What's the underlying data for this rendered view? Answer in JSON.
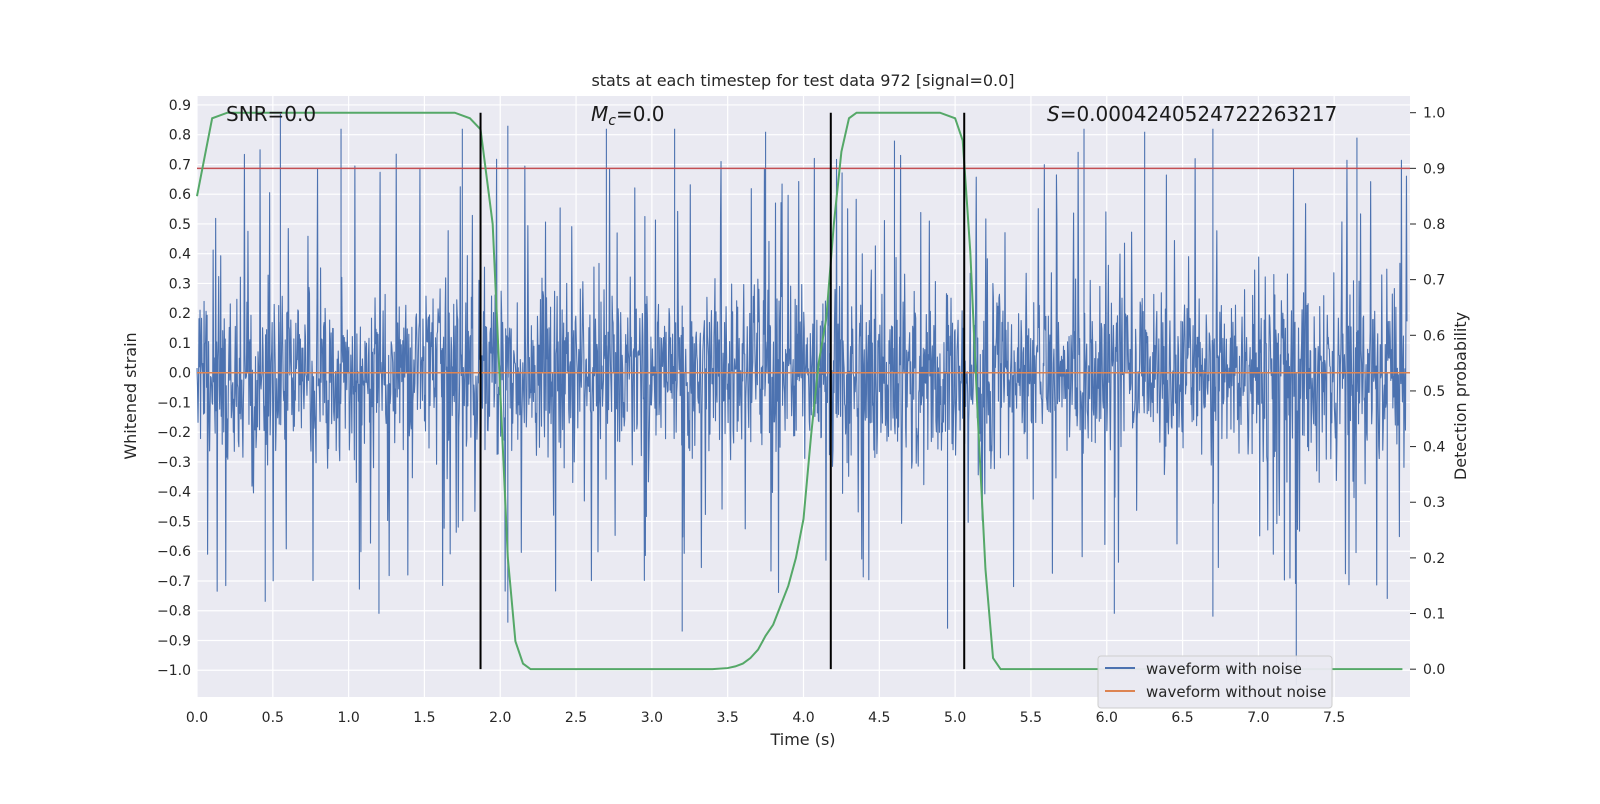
{
  "chart_data": {
    "type": "line",
    "title": "stats at each timestep for test data 972 [signal=0.0]",
    "xlabel": "Time (s)",
    "ylabel": "Whitened strain",
    "y2label": "Detection probability",
    "xlim": [
      0.0,
      8.0
    ],
    "ylim": [
      -1.09,
      0.93
    ],
    "y2lim": [
      -0.05,
      1.03
    ],
    "xticks": [
      0.0,
      0.5,
      1.0,
      1.5,
      2.0,
      2.5,
      3.0,
      3.5,
      4.0,
      4.5,
      5.0,
      5.5,
      6.0,
      6.5,
      7.0,
      7.5
    ],
    "xtick_labels": [
      "0.0",
      "0.5",
      "1.0",
      "1.5",
      "2.0",
      "2.5",
      "3.0",
      "3.5",
      "4.0",
      "4.5",
      "5.0",
      "5.5",
      "6.0",
      "6.5",
      "7.0",
      "7.5"
    ],
    "yticks": [
      0.9,
      0.8,
      0.7,
      0.6,
      0.5,
      0.4,
      0.3,
      0.2,
      0.1,
      0.0,
      -0.1,
      -0.2,
      -0.3,
      -0.4,
      -0.5,
      -0.6,
      -0.7,
      -0.8,
      -0.9,
      -1.0
    ],
    "ytick_labels": [
      "0.9",
      "0.8",
      "0.7",
      "0.6",
      "0.5",
      "0.4",
      "0.3",
      "0.2",
      "0.1",
      "0.0",
      "−0.1",
      "−0.2",
      "−0.3",
      "−0.4",
      "−0.5",
      "−0.6",
      "−0.7",
      "−0.8",
      "−0.9",
      "−1.0"
    ],
    "y2ticks": [
      1.0,
      0.9,
      0.8,
      0.7,
      0.6,
      0.5,
      0.4,
      0.3,
      0.2,
      0.1,
      0.0
    ],
    "y2tick_labels": [
      "1.0",
      "0.9",
      "0.8",
      "0.7",
      "0.6",
      "0.5",
      "0.4",
      "0.3",
      "0.2",
      "0.1",
      "0.0"
    ],
    "grid": true,
    "legend_position": "bottom-right",
    "series": [
      {
        "name": "waveform with noise",
        "axis": "left",
        "color": "#4c72b0",
        "style": "dense-noise",
        "approx_range": [
          -1.05,
          0.87
        ],
        "peaks_top": [
          [
            0.55,
            0.87
          ],
          [
            0.95,
            0.82
          ],
          [
            1.75,
            0.82
          ],
          [
            2.05,
            0.83
          ],
          [
            2.7,
            0.82
          ],
          [
            3.15,
            0.82
          ],
          [
            3.75,
            0.81
          ],
          [
            4.6,
            0.78
          ],
          [
            5.85,
            0.82
          ],
          [
            6.25,
            0.81
          ],
          [
            6.7,
            0.82
          ],
          [
            7.65,
            0.79
          ]
        ],
        "peaks_bottom": [
          [
            0.45,
            -0.77
          ],
          [
            1.2,
            -0.81
          ],
          [
            2.05,
            -0.84
          ],
          [
            3.2,
            -0.87
          ],
          [
            4.95,
            -0.86
          ],
          [
            6.05,
            -0.81
          ],
          [
            6.7,
            -0.82
          ],
          [
            7.25,
            -1.05
          ],
          [
            7.85,
            -0.76
          ]
        ]
      },
      {
        "name": "waveform without noise",
        "axis": "left",
        "color": "#dd8452",
        "x": [
          0.0,
          8.0
        ],
        "y": [
          0.0,
          0.0
        ]
      },
      {
        "name": "",
        "axis": "right",
        "color": "#55a868",
        "x": [
          0.0,
          0.05,
          0.1,
          0.2,
          0.5,
          1.0,
          1.5,
          1.7,
          1.8,
          1.87,
          1.95,
          2.0,
          2.05,
          2.1,
          2.15,
          2.2,
          2.5,
          3.0,
          3.4,
          3.5,
          3.55,
          3.6,
          3.65,
          3.7,
          3.75,
          3.8,
          3.9,
          3.95,
          4.0,
          4.05,
          4.1,
          4.15,
          4.2,
          4.25,
          4.3,
          4.35,
          4.4,
          4.5,
          4.9,
          5.0,
          5.05,
          5.1,
          5.15,
          5.2,
          5.25,
          5.3,
          5.35,
          5.5,
          6.0,
          7.0,
          7.95
        ],
        "y": [
          0.85,
          0.92,
          0.99,
          1.0,
          1.0,
          1.0,
          1.0,
          1.0,
          0.99,
          0.97,
          0.8,
          0.5,
          0.2,
          0.05,
          0.01,
          0.0,
          0.0,
          0.0,
          0.0,
          0.002,
          0.005,
          0.01,
          0.02,
          0.035,
          0.06,
          0.08,
          0.15,
          0.2,
          0.27,
          0.42,
          0.55,
          0.63,
          0.8,
          0.93,
          0.99,
          1.0,
          1.0,
          1.0,
          1.0,
          0.99,
          0.95,
          0.75,
          0.45,
          0.18,
          0.02,
          0.0,
          0.0,
          0.0,
          0.0,
          0.0,
          0.0
        ]
      },
      {
        "name": "",
        "axis": "right",
        "color": "#c44e52",
        "x": [
          0.0,
          8.0
        ],
        "y": [
          0.9,
          0.9
        ]
      }
    ],
    "vlines": [
      1.87,
      4.18,
      5.06
    ],
    "vline_color": "#000000",
    "annotations": [
      {
        "text": "SNR=0.0",
        "x": 0.2
      },
      {
        "text": "M_c=0.0",
        "x": 2.6
      },
      {
        "text": "S=0.0004240524722263217",
        "x": 5.6
      }
    ]
  }
}
